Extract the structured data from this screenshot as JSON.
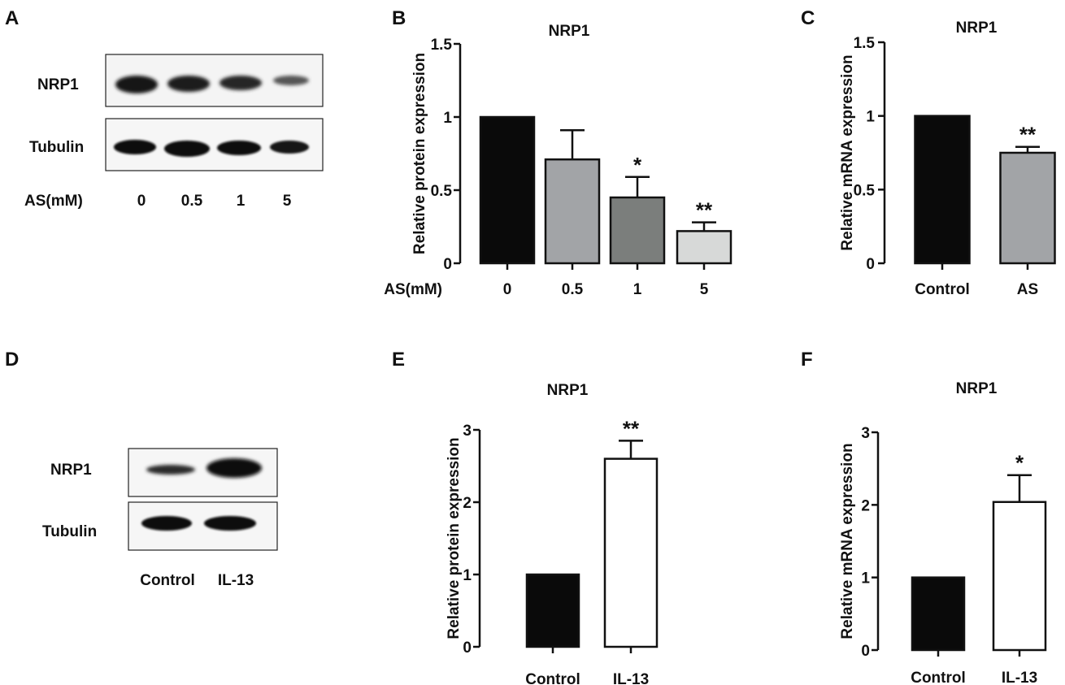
{
  "panels": {
    "A": {
      "letter": "A",
      "blot": {
        "rows": [
          "NRP1",
          "Tubulin"
        ],
        "xlabel": "AS(mM)",
        "lanes": [
          "0",
          "0.5",
          "1",
          "5"
        ]
      }
    },
    "D": {
      "letter": "D",
      "blot": {
        "rows": [
          "NRP1",
          "Tubulin"
        ],
        "lanes": [
          "Control",
          "IL-13"
        ]
      }
    },
    "B": {
      "letter": "B"
    },
    "C": {
      "letter": "C"
    },
    "E": {
      "letter": "E"
    },
    "F": {
      "letter": "F"
    }
  },
  "chart_data": [
    {
      "panel": "B",
      "type": "bar",
      "title": "NRP1",
      "ylabel": "Relative protein expression",
      "xlabel": "AS(mM)",
      "categories": [
        "0",
        "0.5",
        "1",
        "5"
      ],
      "values": [
        1.0,
        0.71,
        0.45,
        0.22
      ],
      "errors": [
        0,
        0.2,
        0.14,
        0.06
      ],
      "significance": [
        "",
        "",
        "*",
        "**"
      ],
      "bar_colors": [
        "#0a0a0a",
        "#a2a4a7",
        "#7b7e7c",
        "#d7d9d8"
      ],
      "ylim": [
        0,
        1.5
      ],
      "yticks": [
        "0",
        "0.5",
        "1",
        "1.5"
      ],
      "grid": false
    },
    {
      "panel": "C",
      "type": "bar",
      "title": "NRP1",
      "ylabel": "Relative mRNA expression",
      "xlabel": "",
      "categories": [
        "Control",
        "AS"
      ],
      "values": [
        1.0,
        0.75
      ],
      "errors": [
        0,
        0.04
      ],
      "significance": [
        "",
        "**"
      ],
      "bar_colors": [
        "#0a0a0a",
        "#a2a4a7"
      ],
      "ylim": [
        0,
        1.5
      ],
      "yticks": [
        "0",
        "0.5",
        "1",
        "1.5"
      ],
      "grid": false
    },
    {
      "panel": "E",
      "type": "bar",
      "title": "NRP1",
      "ylabel": "Relative protein expression",
      "xlabel": "",
      "categories": [
        "Control",
        "IL-13"
      ],
      "values": [
        1.0,
        2.6
      ],
      "errors": [
        0,
        0.25
      ],
      "significance": [
        "",
        "**"
      ],
      "bar_colors": [
        "#0a0a0a",
        "#ffffff"
      ],
      "ylim": [
        0,
        3
      ],
      "yticks": [
        "0",
        "1",
        "2",
        "3"
      ],
      "grid": false
    },
    {
      "panel": "F",
      "type": "bar",
      "title": "NRP1",
      "ylabel": "Relative mRNA expression",
      "xlabel": "",
      "categories": [
        "Control",
        "IL-13"
      ],
      "values": [
        1.0,
        2.04
      ],
      "errors": [
        0,
        0.37
      ],
      "significance": [
        "",
        "*"
      ],
      "bar_colors": [
        "#0a0a0a",
        "#ffffff"
      ],
      "ylim": [
        0,
        3
      ],
      "yticks": [
        "0",
        "1",
        "2",
        "3"
      ],
      "grid": false
    }
  ]
}
